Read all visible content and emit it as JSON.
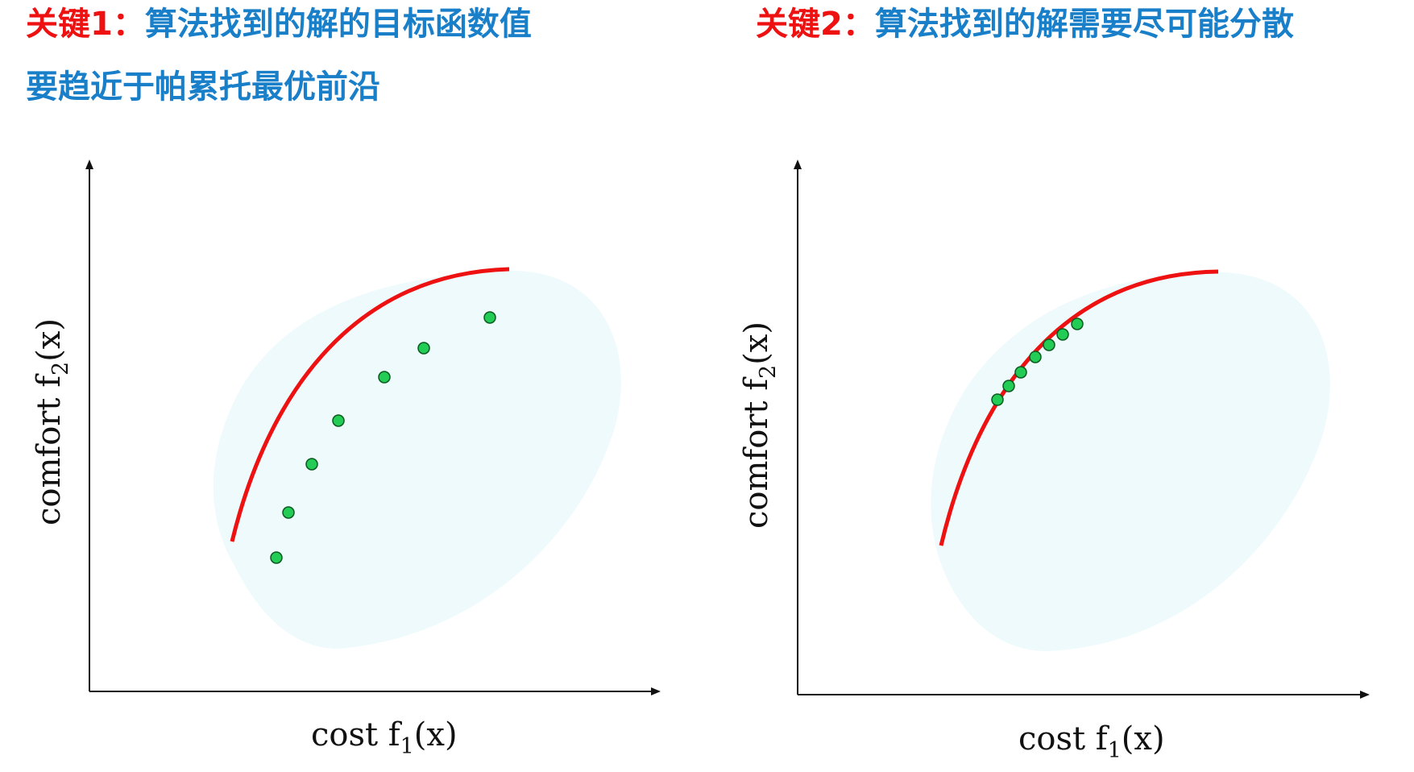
{
  "left_panel": {
    "heading": {
      "key": "关键1",
      "colon": "：",
      "line1": "算法找到的解的目标函数值",
      "line2": "要趋近于帕累托最优前沿"
    },
    "axes": {
      "x_label_main": "cost f",
      "x_label_sub": "1",
      "x_label_arg": "(x)",
      "y_label_main": "comfort f",
      "y_label_sub": "2",
      "y_label_arg": "(x)"
    },
    "solutions_shown": 7
  },
  "right_panel": {
    "heading": {
      "key": "关键2",
      "colon": "：",
      "line1": "算法找到的解需要尽可能分散"
    },
    "axes": {
      "x_label_main": "cost f",
      "x_label_sub": "1",
      "x_label_arg": "(x)",
      "y_label_main": "comfort f",
      "y_label_sub": "2",
      "y_label_arg": "(x)"
    },
    "solutions_shown": 7
  },
  "colors": {
    "key_text": "#ee1111",
    "heading_text": "#1a7fc9",
    "pareto_front": "#ee1111",
    "feasible_region": "#eefafc",
    "solution_point": "#22cc55",
    "axis": "#111111"
  }
}
